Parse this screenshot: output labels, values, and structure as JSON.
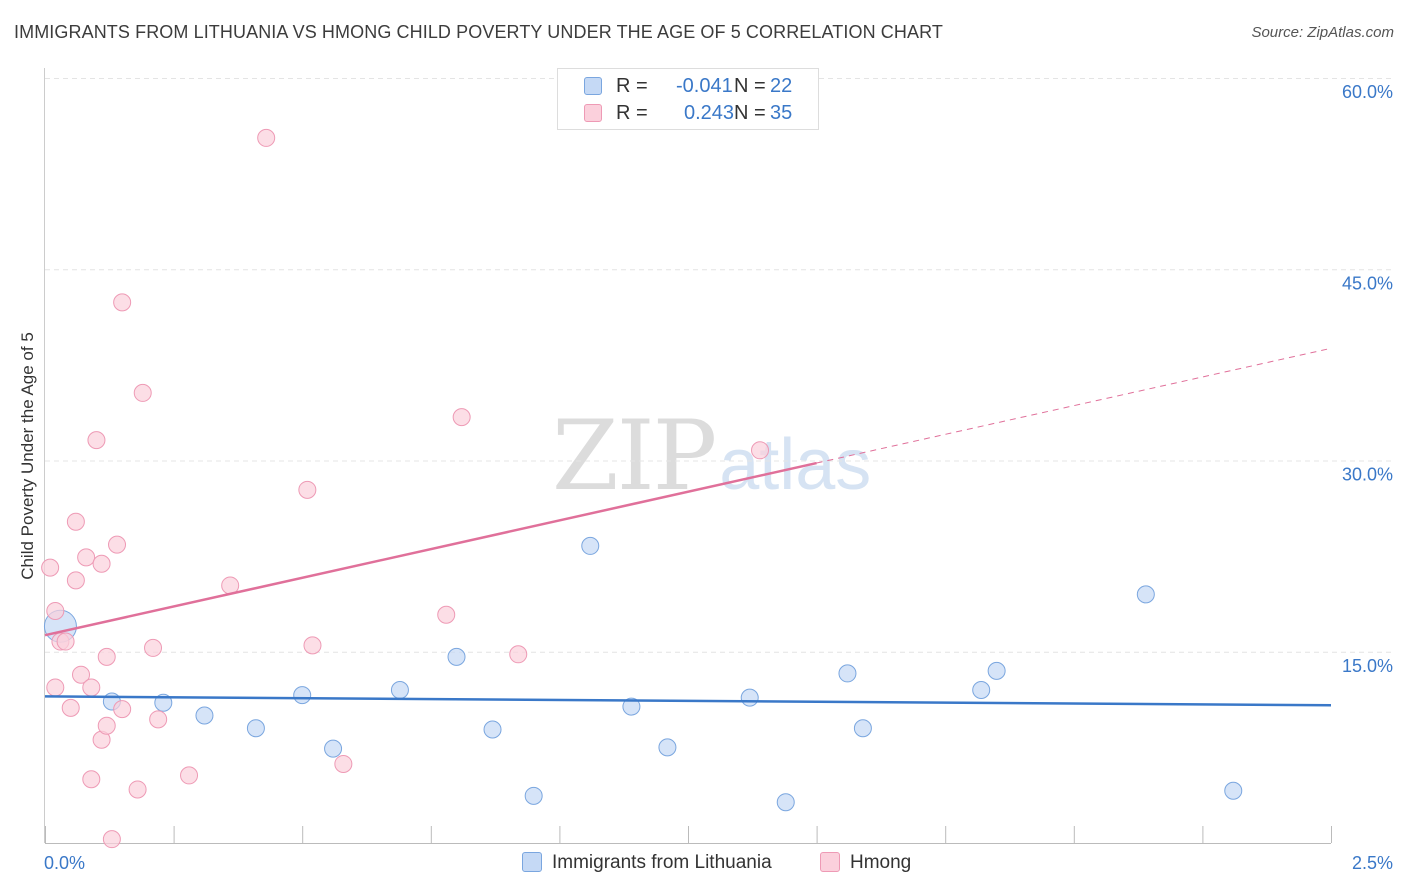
{
  "header": {
    "title": "IMMIGRANTS FROM LITHUANIA VS HMONG CHILD POVERTY UNDER THE AGE OF 5 CORRELATION CHART",
    "source": "Source: ZipAtlas.com"
  },
  "watermark": {
    "zip": "ZIP",
    "atlas": "atlas"
  },
  "legend_top": {
    "rows": [
      {
        "r_label": "R =",
        "r_value": "-0.041",
        "n_label": "N =",
        "n_value": "22"
      },
      {
        "r_label": "R =",
        "r_value": "0.243",
        "n_label": "N =",
        "n_value": "35"
      }
    ]
  },
  "legend_bottom": {
    "series1": "Immigrants from Lithuania",
    "series2": "Hmong"
  },
  "colors": {
    "blue_fill": "#c5d9f5",
    "blue_stroke": "#7aa6df",
    "blue_line": "#3a78c8",
    "pink_fill": "#fbd0dc",
    "pink_stroke": "#ee9ab5",
    "pink_line": "#e0709a",
    "tick_label": "#3a78c8",
    "grid": "#e4e4e4"
  },
  "chart_data": {
    "type": "scatter",
    "title": "IMMIGRANTS FROM LITHUANIA VS HMONG CHILD POVERTY UNDER THE AGE OF 5 CORRELATION CHART",
    "xlabel": "",
    "ylabel": "Child Poverty Under the Age of 5",
    "xlim": [
      0,
      2.5
    ],
    "ylim": [
      0,
      60
    ],
    "x_tick_labels": [
      "0.0%",
      "2.5%"
    ],
    "y_ticks": [
      15,
      30,
      45,
      60
    ],
    "y_tick_labels": [
      "15.0%",
      "30.0%",
      "45.0%",
      "60.0%"
    ],
    "grid": true,
    "legend_position": "top-center",
    "series": [
      {
        "name": "Immigrants from Lithuania",
        "R": -0.041,
        "N": 22,
        "points": [
          {
            "x": 0.03,
            "y": 17.0,
            "big": true
          },
          {
            "x": 0.13,
            "y": 11.1
          },
          {
            "x": 0.23,
            "y": 11.0
          },
          {
            "x": 0.31,
            "y": 10.0
          },
          {
            "x": 0.41,
            "y": 9.0
          },
          {
            "x": 0.5,
            "y": 11.6
          },
          {
            "x": 0.56,
            "y": 7.4
          },
          {
            "x": 0.69,
            "y": 12.0
          },
          {
            "x": 0.8,
            "y": 14.6
          },
          {
            "x": 0.87,
            "y": 8.9
          },
          {
            "x": 0.95,
            "y": 3.7
          },
          {
            "x": 1.06,
            "y": 23.3
          },
          {
            "x": 1.14,
            "y": 10.7
          },
          {
            "x": 1.21,
            "y": 7.5
          },
          {
            "x": 1.37,
            "y": 11.4
          },
          {
            "x": 1.44,
            "y": 3.2
          },
          {
            "x": 1.56,
            "y": 13.3
          },
          {
            "x": 1.59,
            "y": 9.0
          },
          {
            "x": 1.82,
            "y": 12.0
          },
          {
            "x": 1.85,
            "y": 13.5
          },
          {
            "x": 2.14,
            "y": 19.5
          },
          {
            "x": 2.31,
            "y": 4.1
          }
        ],
        "trend": {
          "x": [
            0,
            2.5
          ],
          "y": [
            11.5,
            10.8
          ]
        }
      },
      {
        "name": "Hmong",
        "R": 0.243,
        "N": 35,
        "points": [
          {
            "x": 0.01,
            "y": 21.6
          },
          {
            "x": 0.02,
            "y": 18.2
          },
          {
            "x": 0.02,
            "y": 12.2
          },
          {
            "x": 0.03,
            "y": 15.8
          },
          {
            "x": 0.04,
            "y": 15.8
          },
          {
            "x": 0.05,
            "y": 10.6
          },
          {
            "x": 0.06,
            "y": 25.2
          },
          {
            "x": 0.06,
            "y": 20.6
          },
          {
            "x": 0.07,
            "y": 13.2
          },
          {
            "x": 0.08,
            "y": 22.4
          },
          {
            "x": 0.09,
            "y": 12.2
          },
          {
            "x": 0.09,
            "y": 5.0
          },
          {
            "x": 0.1,
            "y": 31.6
          },
          {
            "x": 0.11,
            "y": 21.9
          },
          {
            "x": 0.11,
            "y": 8.1
          },
          {
            "x": 0.12,
            "y": 9.2
          },
          {
            "x": 0.12,
            "y": 14.6
          },
          {
            "x": 0.13,
            "y": 0.3
          },
          {
            "x": 0.14,
            "y": 23.4
          },
          {
            "x": 0.15,
            "y": 10.5
          },
          {
            "x": 0.15,
            "y": 42.4
          },
          {
            "x": 0.18,
            "y": 4.2
          },
          {
            "x": 0.19,
            "y": 35.3
          },
          {
            "x": 0.21,
            "y": 15.3
          },
          {
            "x": 0.22,
            "y": 9.7
          },
          {
            "x": 0.28,
            "y": 5.3
          },
          {
            "x": 0.36,
            "y": 20.2
          },
          {
            "x": 0.43,
            "y": 55.3
          },
          {
            "x": 0.51,
            "y": 27.7
          },
          {
            "x": 0.52,
            "y": 15.5
          },
          {
            "x": 0.58,
            "y": 6.2
          },
          {
            "x": 0.78,
            "y": 17.9
          },
          {
            "x": 0.81,
            "y": 33.4
          },
          {
            "x": 0.92,
            "y": 14.8
          },
          {
            "x": 1.39,
            "y": 30.8
          }
        ],
        "trend": {
          "x": [
            0,
            1.5
          ],
          "y": [
            16.3,
            29.8
          ]
        },
        "trend_extension": {
          "x": [
            1.5,
            2.5
          ],
          "y": [
            29.8,
            38.8
          ]
        }
      }
    ]
  }
}
